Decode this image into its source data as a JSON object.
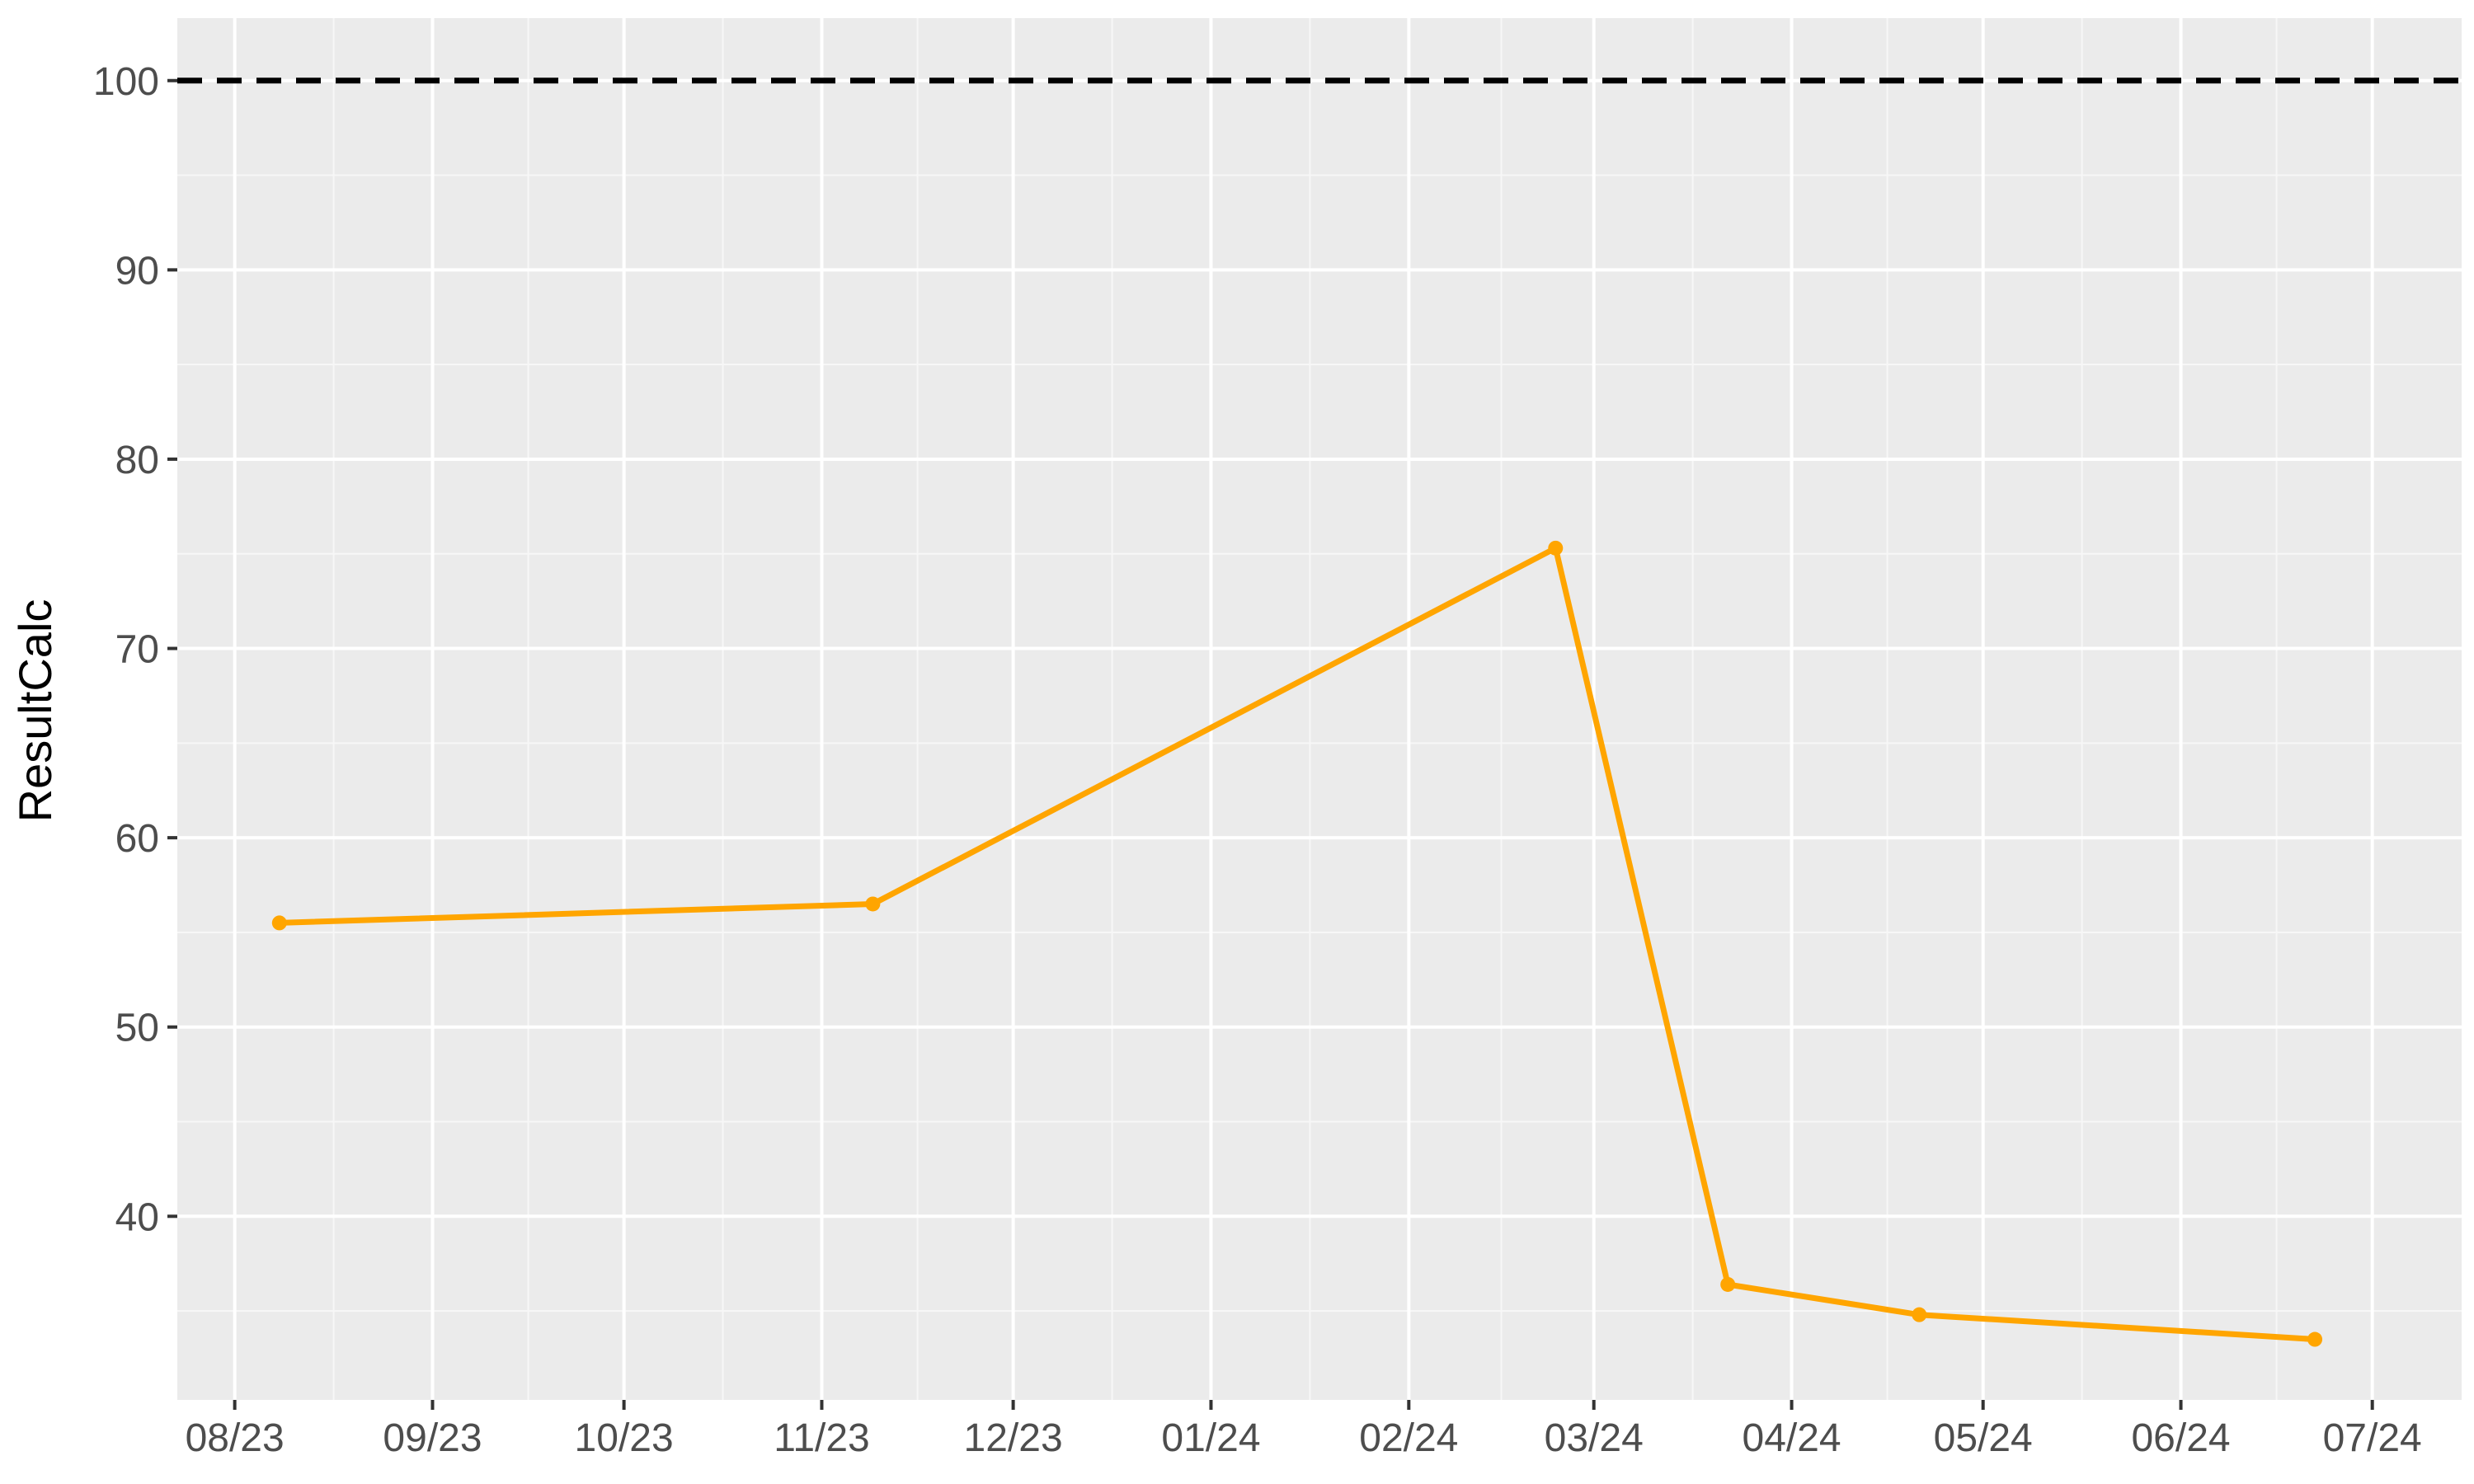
{
  "chart_data": {
    "type": "line",
    "title": "",
    "xlabel": "",
    "ylabel": "ResultCalc",
    "x_tick_labels": [
      "08/23",
      "09/23",
      "10/23",
      "11/23",
      "12/23",
      "01/24",
      "02/24",
      "03/24",
      "04/24",
      "05/24",
      "06/24",
      "07/24"
    ],
    "x_tick_dates": [
      "2023-08-01",
      "2023-09-01",
      "2023-10-01",
      "2023-11-01",
      "2023-12-01",
      "2024-01-01",
      "2024-02-01",
      "2024-03-01",
      "2024-04-01",
      "2024-05-01",
      "2024-06-01",
      "2024-07-01"
    ],
    "y_ticks": [
      40,
      50,
      60,
      70,
      80,
      90,
      100
    ],
    "ylim": [
      30.3,
      103.3
    ],
    "xlim": [
      "2023-07-23",
      "2024-07-15"
    ],
    "grid": true,
    "series": [
      {
        "color": "#FFA500",
        "points": [
          {
            "x": "2023-08-08",
            "y": 55.5
          },
          {
            "x": "2023-11-09",
            "y": 56.5
          },
          {
            "x": "2024-02-24",
            "y": 75.3
          },
          {
            "x": "2024-03-22",
            "y": 36.4
          },
          {
            "x": "2024-04-21",
            "y": 34.8
          },
          {
            "x": "2024-06-22",
            "y": 33.5
          }
        ]
      }
    ],
    "reference_line": {
      "y": 100,
      "style": "dashed",
      "color": "#000000"
    },
    "colors": {
      "panel_background": "#EBEBEB",
      "grid_major": "#FFFFFF",
      "grid_minor": "#F7F7F7",
      "tick_text": "#4D4D4D",
      "tick_mark": "#333333"
    }
  }
}
